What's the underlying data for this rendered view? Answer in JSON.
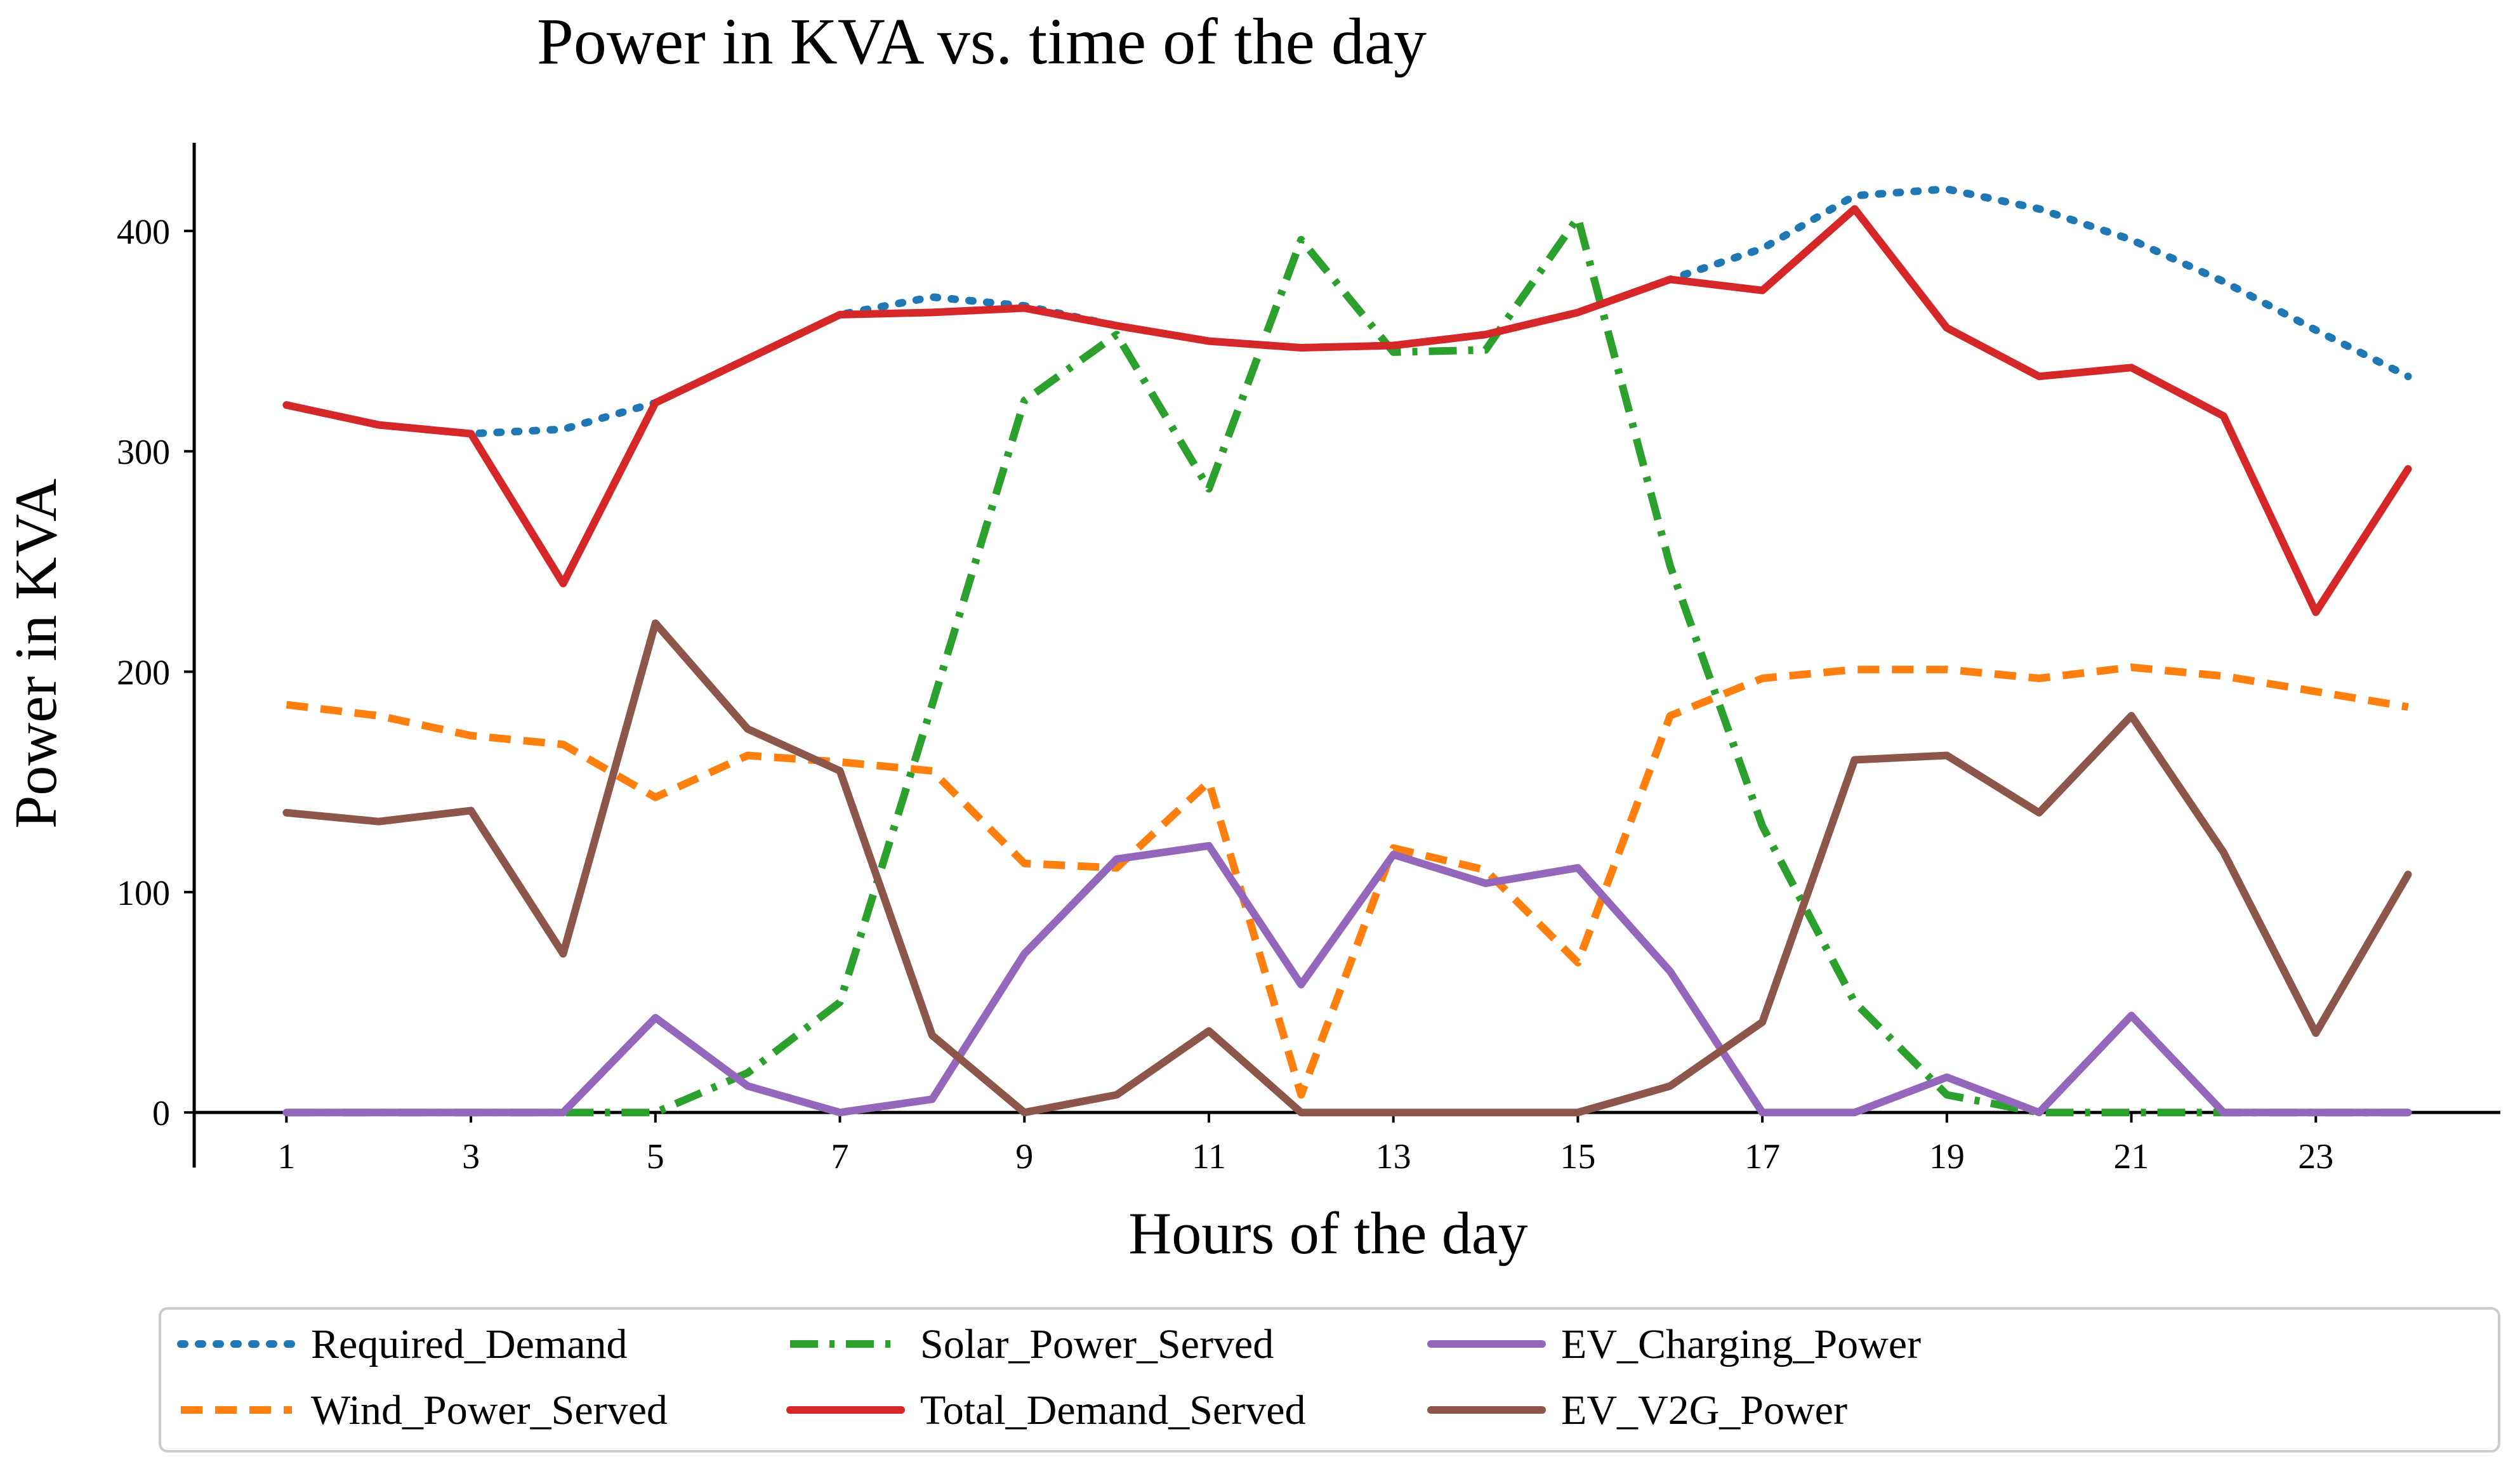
{
  "chart_data": {
    "type": "line",
    "title": "Power in KVA vs. time of the day",
    "xlabel": "Hours of the day",
    "ylabel": "Power in KVA",
    "xlim": [
      0,
      25
    ],
    "ylim": [
      -25,
      440
    ],
    "x": [
      1,
      2,
      3,
      4,
      5,
      6,
      7,
      8,
      9,
      10,
      11,
      12,
      13,
      14,
      15,
      16,
      17,
      18,
      19,
      20,
      21,
      22,
      23,
      24
    ],
    "xticks": [
      1,
      3,
      5,
      7,
      9,
      11,
      13,
      15,
      17,
      19,
      21,
      23
    ],
    "yticks": [
      0,
      100,
      200,
      300,
      400
    ],
    "legend_position": "bottom",
    "series": [
      {
        "name": "Required_Demand",
        "color": "#1f77b4",
        "style": "dotted",
        "values": [
          321,
          312,
          308,
          310,
          322,
          342,
          362,
          370,
          366,
          357,
          350,
          347,
          348,
          353,
          363,
          378,
          392,
          416,
          419,
          410,
          396,
          377,
          355,
          334
        ]
      },
      {
        "name": "Wind_Power_Served",
        "color": "#ff7f0e",
        "style": "dashed",
        "values": [
          185,
          180,
          171,
          167,
          143,
          162,
          159,
          155,
          113,
          111,
          150,
          8,
          120,
          110,
          68,
          180,
          197,
          201,
          201,
          197,
          202,
          198,
          191,
          184
        ]
      },
      {
        "name": "Solar_Power_Served",
        "color": "#2ca02c",
        "style": "dashdot",
        "values": [
          0,
          0,
          0,
          0,
          0,
          18,
          50,
          185,
          323,
          353,
          283,
          396,
          345,
          346,
          406,
          248,
          130,
          50,
          8,
          0,
          0,
          0,
          0,
          0
        ]
      },
      {
        "name": "Total_Demand_Served",
        "color": "#d62728",
        "style": "solid",
        "values": [
          321,
          312,
          308,
          240,
          322,
          342,
          362,
          363,
          365,
          357,
          350,
          347,
          348,
          353,
          363,
          378,
          373,
          410,
          356,
          334,
          338,
          316,
          227,
          292
        ]
      },
      {
        "name": "EV_Charging_Power",
        "color": "#9467bd",
        "style": "solid",
        "values": [
          0,
          0,
          0,
          0,
          43,
          12,
          0,
          6,
          72,
          115,
          121,
          58,
          117,
          104,
          111,
          64,
          0,
          0,
          16,
          0,
          44,
          0,
          0,
          0
        ]
      },
      {
        "name": "EV_V2G_Power",
        "color": "#8c564b",
        "style": "solid",
        "values": [
          136,
          132,
          137,
          72,
          222,
          174,
          155,
          35,
          0,
          8,
          37,
          0,
          0,
          0,
          0,
          12,
          41,
          160,
          162,
          136,
          180,
          118,
          36,
          108
        ]
      }
    ]
  }
}
